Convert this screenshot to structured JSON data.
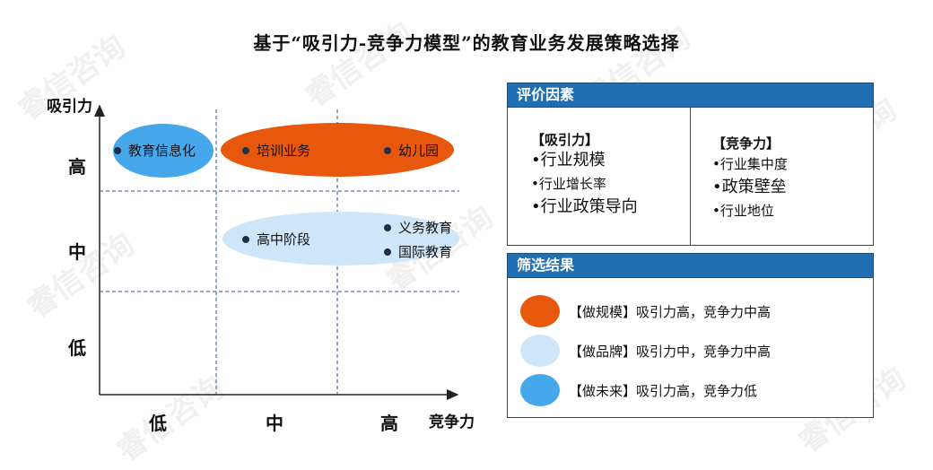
{
  "title": "基于“吸引力-竞争力模型”的教育业务发展策略选择",
  "watermark": "睿信咨询",
  "chart": {
    "y_axis_label": "吸引力",
    "x_axis_label": "竞争力",
    "y_ticks": [
      "高",
      "中",
      "低"
    ],
    "x_ticks": [
      "低",
      "中",
      "高"
    ],
    "items": [
      {
        "label": "教育信息化",
        "attractiveness": "高",
        "competitiveness": "低"
      },
      {
        "label": "培训业务",
        "attractiveness": "高",
        "competitiveness": "中"
      },
      {
        "label": "幼儿园",
        "attractiveness": "高",
        "competitiveness": "高"
      },
      {
        "label": "高中阶段",
        "attractiveness": "中",
        "competitiveness": "中"
      },
      {
        "label": "义务教育",
        "attractiveness": "中",
        "competitiveness": "高"
      },
      {
        "label": "国际教育",
        "attractiveness": "中",
        "competitiveness": "高"
      }
    ]
  },
  "colors": {
    "orange": "#e8580c",
    "light_blue": "#cfe6f9",
    "blue": "#46a8ea",
    "panel_header": "#1f6fb2",
    "dot": "#1e2f4d"
  },
  "factors": {
    "header": "评价因素",
    "attractiveness": {
      "title": "【吸引力】",
      "bullets": [
        "•行业规模",
        "•行业增长率",
        "•行业政策导向"
      ]
    },
    "competitiveness": {
      "title": "【竞争力】",
      "bullets": [
        "•行业集中度",
        "•政策壁垒",
        "•行业地位"
      ]
    }
  },
  "results": {
    "header": "筛选结果",
    "items": [
      {
        "text": "【做规模】吸引力高，竞争力中高",
        "color": "#e8580c"
      },
      {
        "text": "【做品牌】吸引力中，竞争力中高",
        "color": "#cfe6f9"
      },
      {
        "text": "【做未来】吸引力高，竞争力低",
        "color": "#46a8ea"
      }
    ]
  }
}
